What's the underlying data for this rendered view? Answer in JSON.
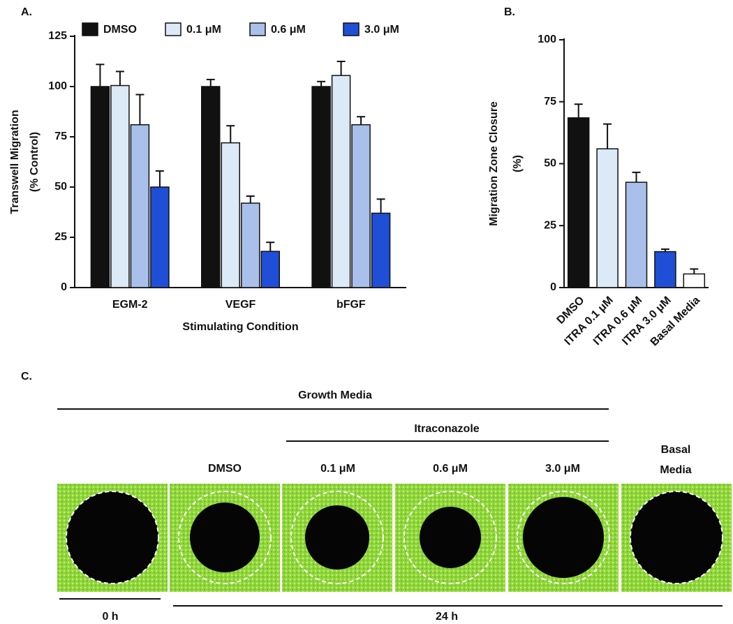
{
  "chart_data": [
    {
      "type": "bar",
      "panel": "A.",
      "categories": [
        "EGM-2",
        "VEGF",
        "bFGF"
      ],
      "series": [
        {
          "name": "DMSO",
          "color": "#111111",
          "values": [
            100,
            100,
            100
          ],
          "errors": [
            11,
            3.5,
            2.5
          ]
        },
        {
          "name": "0.1 μM",
          "color": "#dce9f7",
          "values": [
            100.5,
            72,
            105.5
          ],
          "errors": [
            7,
            8.5,
            7
          ]
        },
        {
          "name": "0.6 μM",
          "color": "#a9c0ea",
          "values": [
            81,
            42,
            81
          ],
          "errors": [
            15,
            3.5,
            4
          ]
        },
        {
          "name": "3.0 μM",
          "color": "#1f4fd6",
          "values": [
            50,
            18,
            37
          ],
          "errors": [
            8,
            4.5,
            7
          ]
        }
      ],
      "ylabel": [
        "Transwell Migration",
        "(% Control)"
      ],
      "xlabel": "Stimulating Condition",
      "ylim": [
        0,
        125
      ],
      "yticks": [
        0,
        25,
        50,
        75,
        100,
        125
      ],
      "legend": "top"
    },
    {
      "type": "bar",
      "panel": "B.",
      "categories": [
        "DMSO",
        "ITRA 0.1 μM",
        "ITRA 0.6 μM",
        "ITRA 3.0 μM",
        "Basal Media"
      ],
      "values": [
        68.5,
        56,
        42.5,
        14.5,
        5.5
      ],
      "errors": [
        5.5,
        10,
        4,
        1,
        2
      ],
      "colors": [
        "#111111",
        "#dce9f7",
        "#a9c0ea",
        "#1f4fd6",
        "#ffffff"
      ],
      "ylabel": [
        "Migration  Zone Closure",
        "(%)"
      ],
      "ylim": [
        0,
        100
      ],
      "yticks": [
        0,
        25,
        50,
        75,
        100
      ]
    }
  ],
  "panel_c": {
    "label": "C.",
    "growth_media": "Growth Media",
    "itraconazole": "Itraconazole",
    "columns": [
      "DMSO",
      "0.1 μM",
      "0.6 μM",
      "3.0 μM"
    ],
    "basal": [
      "Basal",
      "Media"
    ],
    "times": [
      "0 h",
      "24 h"
    ]
  }
}
